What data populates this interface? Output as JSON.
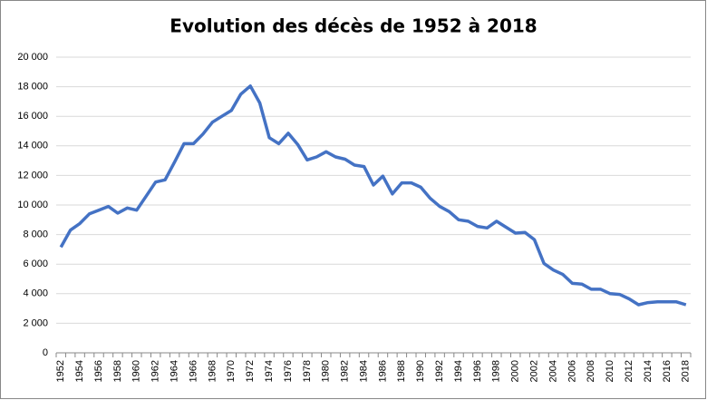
{
  "chart_data": {
    "type": "line",
    "title": "Evolution des décès de 1952 à 2018",
    "categories": [
      "1952",
      null,
      "1954",
      null,
      "1956",
      null,
      "1958",
      null,
      "1960",
      null,
      "1962",
      null,
      "1964",
      null,
      "1966",
      null,
      "1968",
      null,
      "1970",
      null,
      "1972",
      null,
      "1974",
      null,
      "1976",
      null,
      "1978",
      null,
      "1980",
      null,
      "1982",
      null,
      "1984",
      null,
      "1986",
      null,
      "1988",
      null,
      "1990",
      null,
      "1992",
      null,
      "1994",
      null,
      "1996",
      null,
      "1998",
      null,
      "2000",
      null,
      "2002",
      null,
      "2004",
      null,
      "2006",
      null,
      "2008",
      null,
      "2010",
      null,
      "2012",
      null,
      "2014",
      null,
      "2016",
      null,
      "2018"
    ],
    "values": [
      7150,
      8300,
      8750,
      9400,
      9650,
      9900,
      9450,
      9800,
      9650,
      10600,
      11550,
      11700,
      12900,
      14150,
      14150,
      14800,
      15600,
      16000,
      16400,
      17500,
      18050,
      16900,
      14550,
      14150,
      14850,
      14100,
      13050,
      13250,
      13600,
      13250,
      13100,
      12700,
      12600,
      11350,
      11950,
      10750,
      11500,
      11500,
      11200,
      10450,
      9900,
      9550,
      9000,
      8900,
      8550,
      8450,
      8900,
      8500,
      8100,
      8150,
      7650,
      6050,
      5600,
      5300,
      4700,
      4650,
      4300,
      4300,
      4000,
      3950,
      3650,
      3250,
      3400,
      3450,
      3450,
      3450,
      3250
    ],
    "color": "#4472c4",
    "ylim": [
      0,
      20000
    ],
    "yticks": [
      0,
      {
        "value": 2000,
        "label": "2 000"
      },
      {
        "value": 4000,
        "label": "4 000"
      },
      {
        "value": 6000,
        "label": "6 000"
      },
      {
        "value": 8000,
        "label": "8 000"
      },
      {
        "value": 10000,
        "label": "10 000"
      },
      {
        "value": 12000,
        "label": "12 000"
      },
      {
        "value": 14000,
        "label": "14 000"
      },
      {
        "value": 16000,
        "label": "16 000"
      },
      {
        "value": 18000,
        "label": "18 000"
      },
      {
        "value": 20000,
        "label": "20 000"
      }
    ],
    "grid": true
  }
}
